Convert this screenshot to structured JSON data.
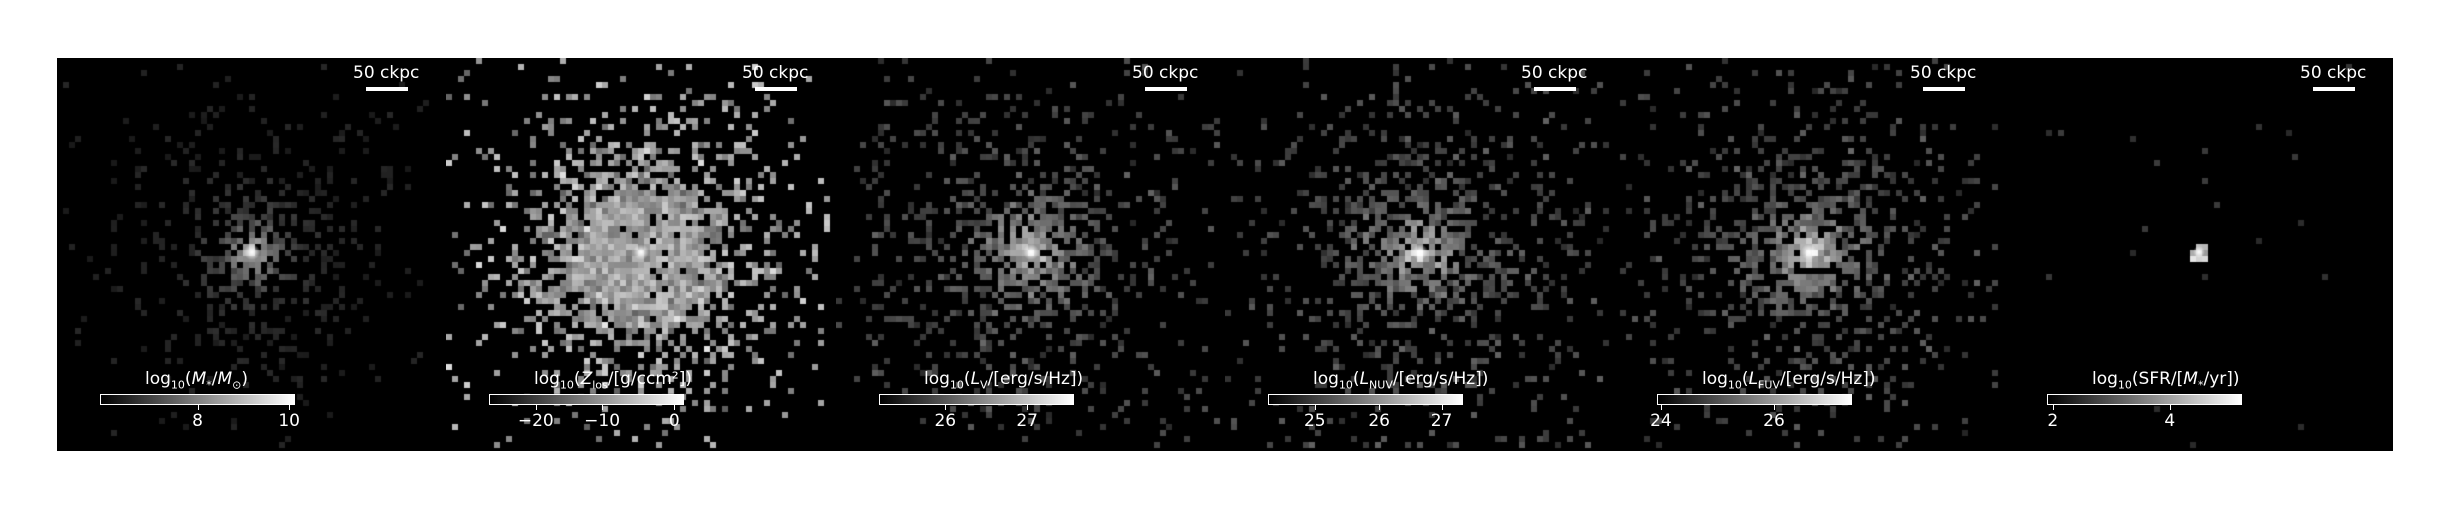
{
  "panels": [
    {
      "id": "stellar-mass",
      "scale_label": "50 ckpc",
      "cbar_title_html": "log<sub>10</sub>(<i>M</i><sub>*</sub>/<i>M</i><sub>⊙</sub>)",
      "ticks": [
        {
          "label": "8",
          "pos": 0.5
        },
        {
          "label": "10",
          "pos": 0.97
        }
      ],
      "pattern": "compact"
    },
    {
      "id": "metallicity",
      "scale_label": "50 ckpc",
      "cbar_title_html": "log<sub>10</sub>(<i>Z</i><sub>los</sub>/[g/ccm²])",
      "ticks": [
        {
          "label": "−20",
          "pos": 0.24
        },
        {
          "label": "−10",
          "pos": 0.58
        },
        {
          "label": "0",
          "pos": 0.95
        }
      ],
      "pattern": "saturated"
    },
    {
      "id": "v-band-luminosity",
      "scale_label": "50 ckpc",
      "cbar_title_html": "log<sub>10</sub>(<i>L</i><sub>V</sub>/[erg/s/Hz])",
      "ticks": [
        {
          "label": "26",
          "pos": 0.34
        },
        {
          "label": "27",
          "pos": 0.76
        }
      ],
      "pattern": "diffuse"
    },
    {
      "id": "nuv-luminosity",
      "scale_label": "50 ckpc",
      "cbar_title_html": "log<sub>10</sub>(<i>L</i><sub>NUV</sub>/[erg/s/Hz])",
      "ticks": [
        {
          "label": "25",
          "pos": 0.24
        },
        {
          "label": "26",
          "pos": 0.57
        },
        {
          "label": "27",
          "pos": 0.89
        }
      ],
      "pattern": "diffuse"
    },
    {
      "id": "fuv-luminosity",
      "scale_label": "50 ckpc",
      "cbar_title_html": "log<sub>10</sub>(<i>L</i><sub>FUV</sub>/[erg/s/Hz])",
      "ticks": [
        {
          "label": "24",
          "pos": 0.02
        },
        {
          "label": "26",
          "pos": 0.6
        }
      ],
      "pattern": "diffuse"
    },
    {
      "id": "star-formation-rate",
      "scale_label": "50 ckpc",
      "cbar_title_html": "log<sub>10</sub>(SFR/[<i>M</i><sub>*</sub>/yr])",
      "ticks": [
        {
          "label": "2",
          "pos": 0.03
        },
        {
          "label": "4",
          "pos": 0.63
        }
      ],
      "pattern": "sparse"
    }
  ],
  "colors": {
    "background": "#000000",
    "foreground": "#ffffff"
  }
}
